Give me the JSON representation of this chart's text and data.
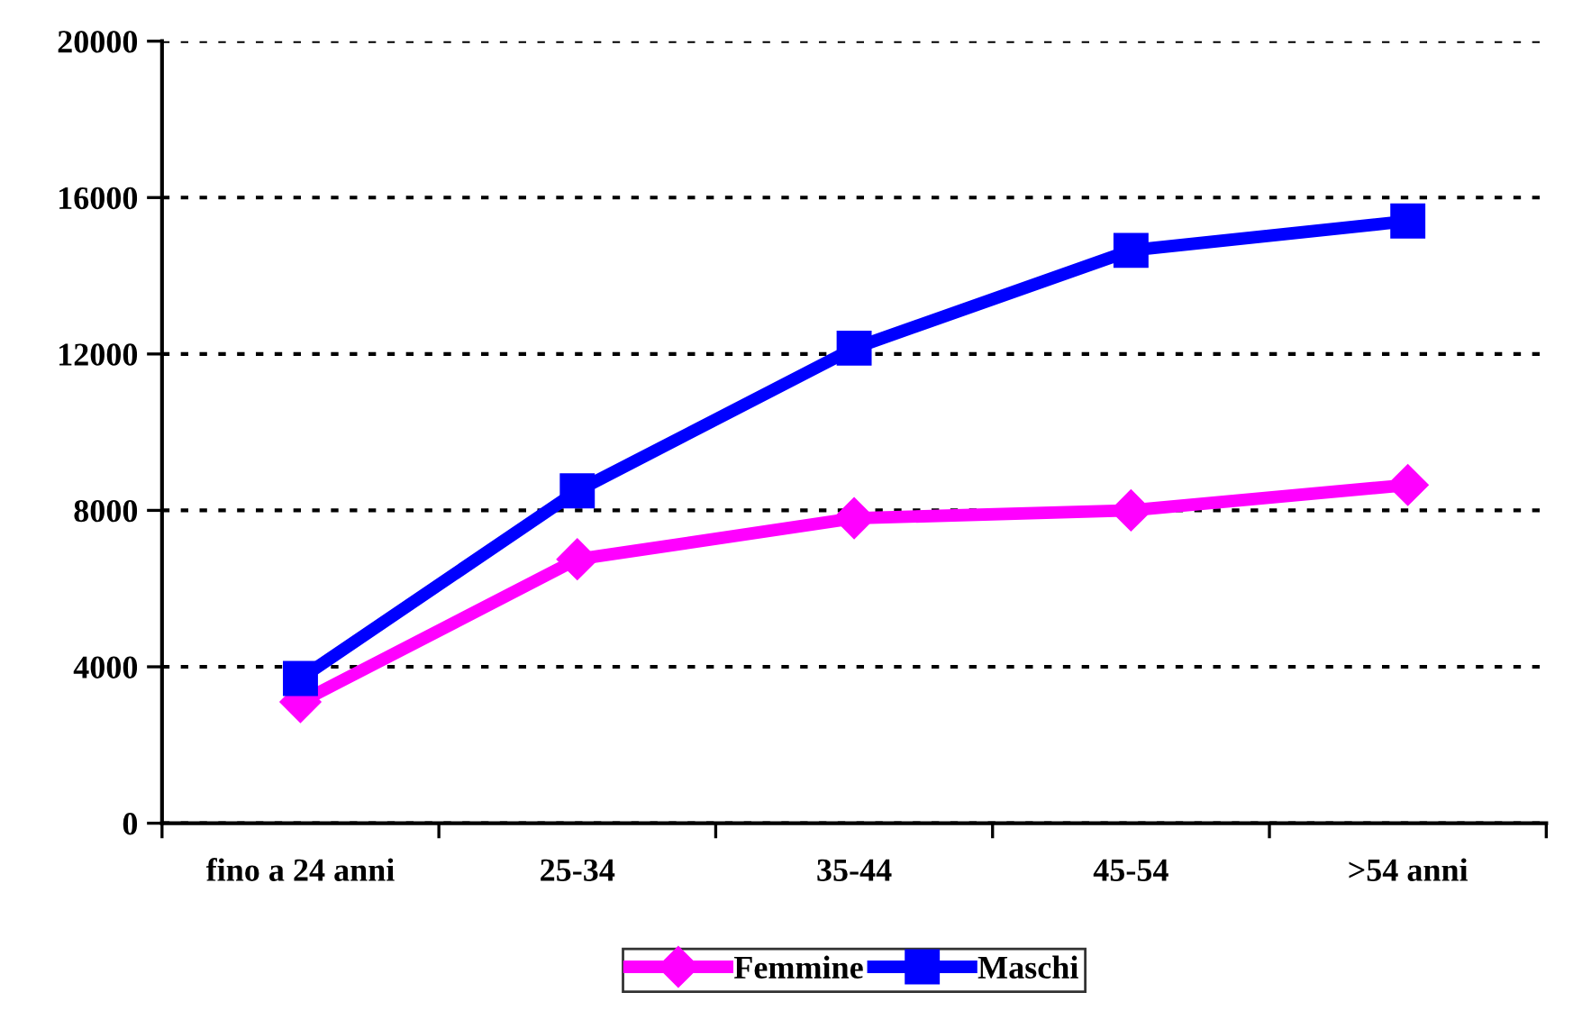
{
  "chart_data": {
    "type": "line",
    "categories": [
      "fino a 24 anni",
      "25-34",
      "35-44",
      "45-54",
      ">54 anni"
    ],
    "series": [
      {
        "name": "Femmine",
        "color": "#ff00ff",
        "marker": "diamond",
        "values": [
          3100,
          6750,
          7800,
          8000,
          8650
        ]
      },
      {
        "name": "Maschi",
        "color": "#0000ff",
        "marker": "square",
        "values": [
          3700,
          8500,
          12150,
          14650,
          15400
        ]
      }
    ],
    "ylim": [
      0,
      20000
    ],
    "yticks": [
      0,
      4000,
      8000,
      12000,
      16000,
      20000
    ],
    "grid": "y",
    "legend": "bottom",
    "line_style": "solid"
  }
}
